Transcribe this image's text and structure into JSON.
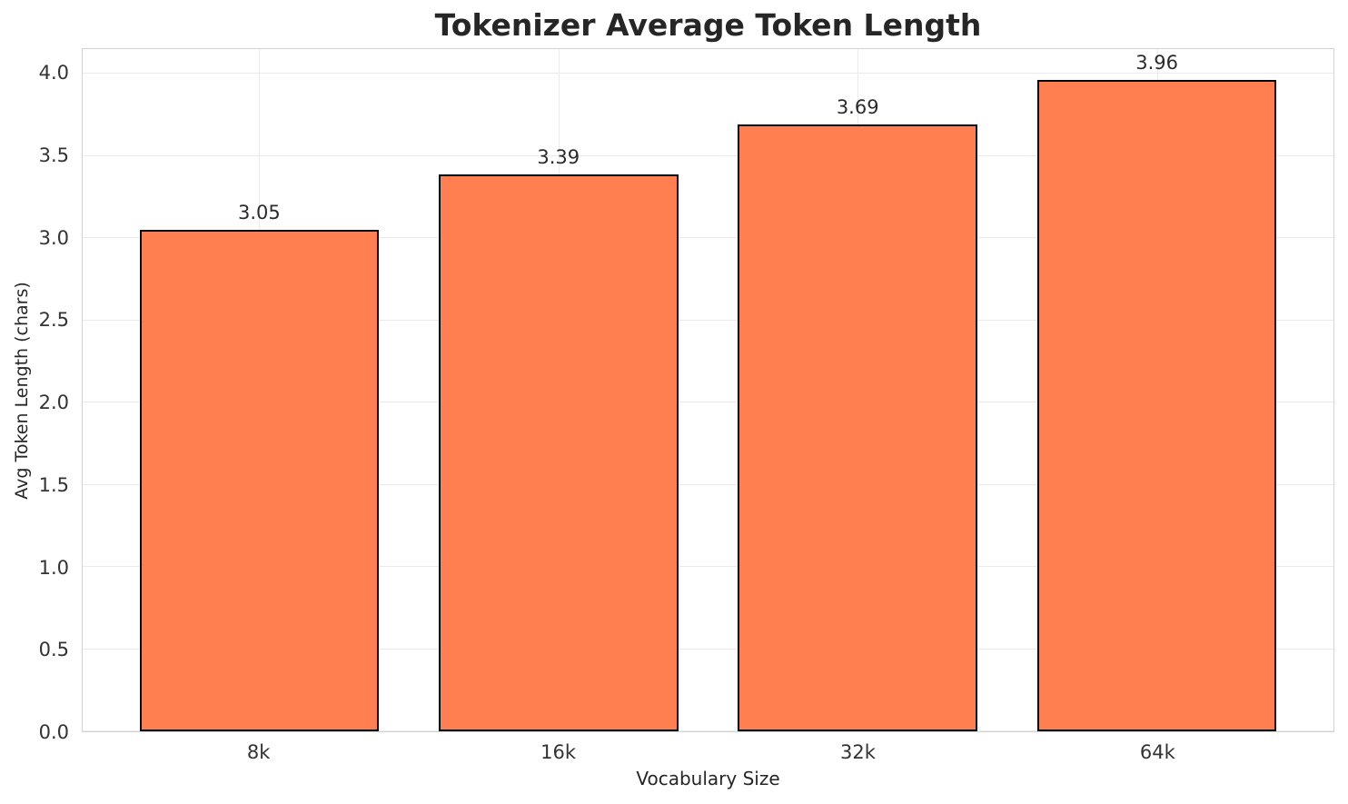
{
  "figure": {
    "background": "#ffffff",
    "grid_color": "#ebebeb",
    "spine_color": "#d3d3d3",
    "text_color": "#262626"
  },
  "chart_data": {
    "type": "bar",
    "title": "Tokenizer Average Token Length",
    "xlabel": "Vocabulary Size",
    "ylabel": "Avg Token Length (chars)",
    "categories": [
      "8k",
      "16k",
      "32k",
      "64k"
    ],
    "values": [
      3.05,
      3.39,
      3.69,
      3.96
    ],
    "value_labels": [
      "3.05",
      "3.39",
      "3.69",
      "3.96"
    ],
    "yticks": [
      0.0,
      0.5,
      1.0,
      1.5,
      2.0,
      2.5,
      3.0,
      3.5,
      4.0
    ],
    "ytick_labels": [
      "0.0",
      "0.5",
      "1.0",
      "1.5",
      "2.0",
      "2.5",
      "3.0",
      "3.5",
      "4.0"
    ],
    "ylim": [
      0,
      4.15
    ],
    "grid": "both",
    "legend": "none",
    "bar_color": "#FF7F50",
    "bar_edge_color": "#000000"
  }
}
